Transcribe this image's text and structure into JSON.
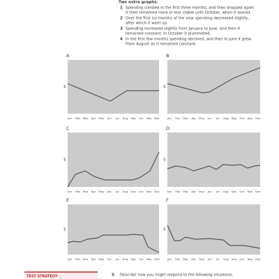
{
  "header": {
    "heading": "Two extra graphs.",
    "items": [
      {
        "number": "1",
        "lines": [
          "Spending climbed in the first three months, and then dropped again.",
          "It then remained more or less stable until October, when it soared."
        ]
      },
      {
        "number": "2",
        "lines": [
          "Over the first six months of the year spending decreased slightly,",
          "after which it went up."
        ]
      },
      {
        "number": "3",
        "lines": [
          "Spending increased slightly from January to June, and then it",
          "remained constant. In October it plummeted."
        ]
      },
      {
        "number": "4",
        "lines": [
          "In the first few months spending declined, and then in June it grew.",
          "From August on it remained constant."
        ]
      }
    ]
  },
  "currency": "$",
  "months": [
    "Jan",
    "Feb",
    "Mar",
    "Apr",
    "May",
    "Jun",
    "Jul",
    "Aug",
    "Sep",
    "Oct",
    "Nov",
    "Dec"
  ],
  "graphs": [
    {
      "label": "A"
    },
    {
      "label": "B"
    },
    {
      "label": "C"
    },
    {
      "label": "D"
    },
    {
      "label": "E"
    },
    {
      "label": "F"
    }
  ],
  "footer": {
    "strategy": "TEST STRATEGY",
    "question": {
      "number": "5",
      "text": "Describe how you might respond to the following situations."
    }
  }
}
